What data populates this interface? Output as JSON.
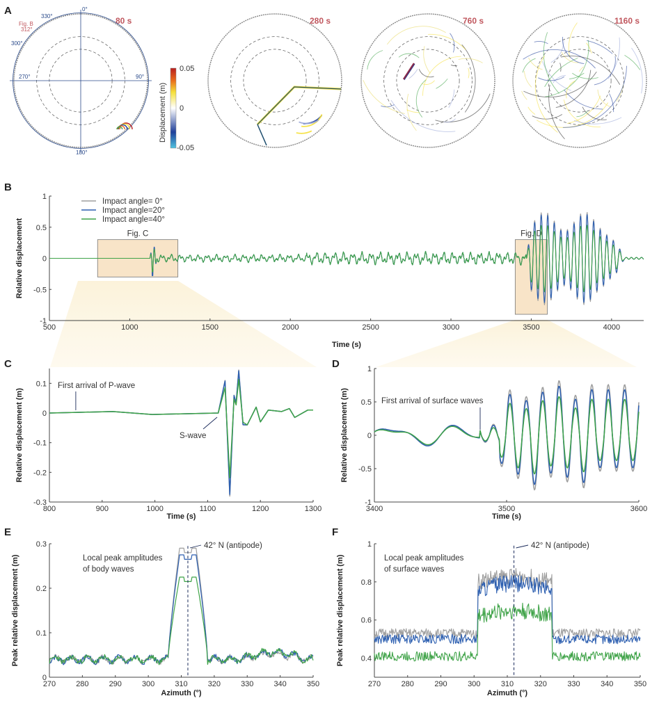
{
  "panels": {
    "A": {
      "label": "A",
      "snapshots": [
        "80 s",
        "280 s",
        "760 s",
        "1160 s"
      ],
      "azimuth_labels": [
        "0°",
        "90°",
        "180°",
        "270°",
        "300°",
        "330°"
      ],
      "fig_b_marker": {
        "line1": "Fig. B",
        "line2": "312°",
        "azimuth": 312
      },
      "colorbar": {
        "label": "Displacement (m)",
        "ticks": [
          "0.05",
          "0",
          "-0.05"
        ],
        "range": [
          -0.05,
          0.05
        ],
        "colors": [
          "#4fc3e0",
          "#1f3f9a",
          "#ffffff",
          "#f5e03a",
          "#e86a1c",
          "#b81f1f"
        ]
      }
    }
  },
  "colors": {
    "angle0": "#9e9e9e",
    "angle20": "#2d5fb0",
    "angle40": "#3fa348",
    "box": "#f8e4c8",
    "accent": "#c0575e",
    "axis": "#2a4a8a"
  },
  "chart_data": [
    {
      "id": "B",
      "label": "B",
      "type": "line",
      "xlabel": "Time (s)",
      "ylabel": "Relative displacement",
      "xlim": [
        500,
        4200
      ],
      "ylim": [
        -1,
        1
      ],
      "xticks": [
        500,
        1000,
        1500,
        2000,
        2500,
        3000,
        3500,
        4000
      ],
      "yticks": [
        -1,
        -0.5,
        0,
        0.5,
        1
      ],
      "ytick_labels": [
        "-1",
        "-0.5",
        "0",
        "0.5",
        "1"
      ],
      "legend": [
        "Impact angle=  0°",
        "Impact angle=20°",
        "Impact angle=40°"
      ],
      "legend_position": "top-left",
      "boxes": [
        {
          "label": "Fig. C",
          "x": [
            800,
            1300
          ],
          "y": [
            -0.3,
            0.3
          ]
        },
        {
          "label": "Fig. D",
          "x": [
            3400,
            3600
          ],
          "y": [
            -0.9,
            0.3
          ]
        }
      ],
      "series_note": "body waves ~1130-1160 s, surface wave train 3480-4050 s (peak ~0.8)"
    },
    {
      "id": "C",
      "label": "C",
      "type": "line",
      "xlabel": "Time (s)",
      "ylabel": "Relative displacement (m)",
      "xlim": [
        800,
        1300
      ],
      "ylim": [
        -0.3,
        0.15
      ],
      "xticks": [
        800,
        900,
        1000,
        1100,
        1200,
        1300
      ],
      "yticks": [
        -0.3,
        -0.2,
        -0.1,
        0,
        0.1
      ],
      "ytick_labels": [
        "-0.3",
        "-0.2",
        "-0.1",
        "0",
        "0.1"
      ],
      "annotations": [
        {
          "text": "First arrival of P-wave",
          "x": 850,
          "y": 0
        },
        {
          "text": "S-wave",
          "x": 1118,
          "y": 0
        }
      ],
      "key_points": [
        [
          800,
          0
        ],
        [
          850,
          0.002
        ],
        [
          920,
          0.005
        ],
        [
          995,
          -0.005
        ],
        [
          1120,
          0
        ],
        [
          1133,
          0.11
        ],
        [
          1142,
          -0.28
        ],
        [
          1150,
          0.06
        ],
        [
          1154,
          0.035
        ],
        [
          1159,
          0.145
        ],
        [
          1167,
          -0.04
        ],
        [
          1175,
          -0.04
        ],
        [
          1192,
          0.02
        ],
        [
          1200,
          -0.03
        ],
        [
          1215,
          0.01
        ],
        [
          1240,
          0.005
        ],
        [
          1255,
          0.015
        ],
        [
          1265,
          -0.015
        ],
        [
          1290,
          0.01
        ],
        [
          1300,
          0.01
        ]
      ]
    },
    {
      "id": "D",
      "label": "D",
      "type": "line",
      "xlabel": "Time (s)",
      "ylabel": "Relative displacement (m)",
      "xlim": [
        3400,
        3600
      ],
      "ylim": [
        -1,
        1
      ],
      "xticks": [
        3400,
        3500,
        3600
      ],
      "yticks": [
        -1,
        -0.5,
        0,
        0.5,
        1
      ],
      "ytick_labels": [
        "-1",
        "-0.5",
        "0",
        "0.5",
        "1"
      ],
      "annotations": [
        {
          "text": "First arrival of surface waves",
          "x": 3480,
          "y": 0
        }
      ],
      "peaks_angle0": [
        0.55,
        0.68,
        0.58,
        0.72,
        0.82,
        0.6,
        0.76
      ],
      "troughs_angle0": [
        -0.35,
        -0.47,
        -0.65,
        -0.82,
        -0.63,
        -0.7,
        -0.79,
        -0.54
      ],
      "peaks_angle40": [
        0.38,
        0.48,
        0.4,
        0.52,
        0.58,
        0.41,
        0.54
      ],
      "troughs_angle40": [
        -0.28,
        -0.33,
        -0.49,
        -0.58,
        -0.46,
        -0.49,
        -0.55,
        -0.38
      ]
    },
    {
      "id": "E",
      "label": "E",
      "type": "line",
      "xlabel": "Azimuth (°)",
      "ylabel": "Peak relative displacement (m)",
      "xlim": [
        270,
        350
      ],
      "ylim": [
        0,
        0.3
      ],
      "xticks": [
        270,
        280,
        290,
        300,
        310,
        320,
        330,
        340,
        350
      ],
      "yticks": [
        0,
        0.1,
        0.2,
        0.3
      ],
      "ytick_labels": [
        "0",
        "0.1",
        "0.2",
        "0.3"
      ],
      "annotations": [
        {
          "text": "Local peak amplitudes",
          "line2": "of body waves"
        },
        {
          "text": "42° N (antipode)",
          "x": 312
        }
      ],
      "series": [
        {
          "name": "Impact angle=  0°",
          "peak": 0.29,
          "baseline": 0.04
        },
        {
          "name": "Impact angle=20°",
          "peak": 0.275,
          "baseline": 0.04
        },
        {
          "name": "Impact angle=40°",
          "peak": 0.225,
          "baseline": 0.04
        }
      ]
    },
    {
      "id": "F",
      "label": "F",
      "type": "line",
      "xlabel": "Azimuth (°)",
      "ylabel": "Peak relative displacement (m)",
      "xlim": [
        270,
        350
      ],
      "ylim": [
        0.3,
        1
      ],
      "xticks": [
        270,
        280,
        290,
        300,
        310,
        320,
        330,
        340,
        350
      ],
      "yticks": [
        0.4,
        0.6,
        0.8,
        1
      ],
      "ytick_labels": [
        "0.4",
        "0.6",
        "0.8",
        "1"
      ],
      "annotations": [
        {
          "text": "Local peak amplitudes",
          "line2": "of surface waves"
        },
        {
          "text": "42° N (antipode)",
          "x": 312
        }
      ],
      "series": [
        {
          "name": "Impact angle=  0°",
          "inside": 0.8,
          "outside": 0.53
        },
        {
          "name": "Impact angle=20°",
          "inside": 0.76,
          "outside": 0.5
        },
        {
          "name": "Impact angle=40°",
          "inside": 0.62,
          "outside": 0.41
        }
      ]
    }
  ]
}
